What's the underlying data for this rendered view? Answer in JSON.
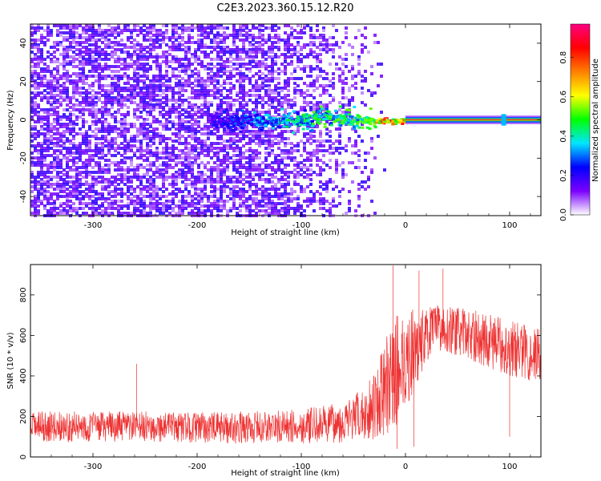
{
  "title": "C2E3.2023.360.15.12.R20",
  "chart_data": [
    {
      "type": "heatmap",
      "name": "spectrogram",
      "xlabel": "Height of straight line (km)",
      "ylabel": "Frequency (Hz)",
      "xlim": [
        -360,
        130
      ],
      "ylim": [
        -50,
        50
      ],
      "xticks": [
        -300,
        -200,
        -100,
        0,
        100
      ],
      "yticks": [
        -40,
        -20,
        0,
        20,
        40
      ],
      "features": [
        {
          "name": "diffuse noise",
          "x_range": [
            -360,
            -20
          ],
          "y_range": [
            -50,
            50
          ],
          "amplitude": 0.2
        },
        {
          "name": "scintillation region",
          "x_range": [
            -190,
            -30
          ],
          "y_range": [
            -10,
            10
          ],
          "amplitude": 0.4
        },
        {
          "name": "carrier line",
          "x_range": [
            0,
            130
          ],
          "y_center": 0,
          "amplitude": 0.95
        }
      ],
      "colorbar": {
        "label": "Normalized spectral amplitude",
        "range": [
          0,
          0.97
        ],
        "ticks": [
          0.0,
          0.2,
          0.4,
          0.6,
          0.8
        ],
        "tick_labels": [
          "0.0",
          "0.2",
          "0.4",
          "0.6",
          "0.8"
        ],
        "colors": [
          "#ffffff",
          "#7b00ff",
          "#0000ff",
          "#00e6ff",
          "#00ff00",
          "#ffff00",
          "#ff7f00",
          "#ff0000",
          "#ff0080"
        ]
      }
    },
    {
      "type": "line",
      "name": "snr",
      "xlabel": "Height of straight line (km)",
      "ylabel": "SNR (10 * v/v)",
      "xlim": [
        -360,
        130
      ],
      "ylim": [
        0,
        950
      ],
      "xticks": [
        -300,
        -200,
        -100,
        0,
        100
      ],
      "yticks": [
        0,
        200,
        400,
        600,
        800
      ],
      "color": "#ee3333",
      "envelope": {
        "x": [
          -360,
          -300,
          -250,
          -200,
          -150,
          -100,
          -60,
          -40,
          -25,
          -15,
          -8,
          0,
          10,
          20,
          30,
          50,
          70,
          100,
          130
        ],
        "mean": [
          150,
          150,
          150,
          145,
          145,
          150,
          170,
          210,
          290,
          380,
          430,
          480,
          530,
          600,
          640,
          620,
          590,
          540,
          500
        ],
        "halfwidth": [
          75,
          75,
          75,
          75,
          80,
          85,
          100,
          130,
          200,
          260,
          280,
          260,
          200,
          140,
          110,
          120,
          130,
          140,
          140
        ]
      },
      "spikes": [
        {
          "x": -258,
          "y": 460
        },
        {
          "x": -12,
          "y": 945
        },
        {
          "x": 13,
          "y": 920
        },
        {
          "x": 36,
          "y": 930
        },
        {
          "x": 8,
          "y": 50
        },
        {
          "x": -8,
          "y": 40
        },
        {
          "x": 100,
          "y": 100
        }
      ]
    }
  ]
}
